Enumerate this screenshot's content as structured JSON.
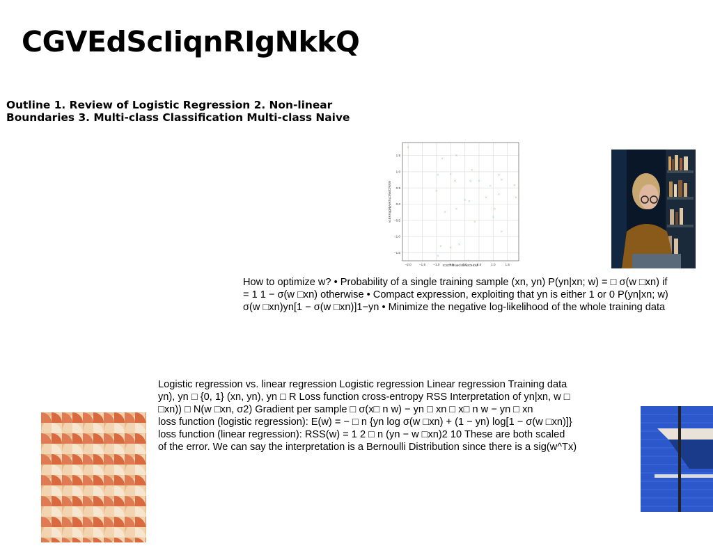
{
  "slide": {
    "title": "CGVEdScIiqnRIgNkkQ",
    "outline": "Outline 1. Review of Logistic Regression 2. Non-linear\nBoundaries 3. Multi-class Classification Multi-class Naive",
    "para1": "How to optimize w? • Probability of a single training sample (xn, yn) P(yn|xn; w) = □ σ(w □xn) if\n= 1 1 − σ(w □xn) otherwise • Compact expression, exploiting that yn is either 1 or 0 P(yn|xn; w)\nσ(w □xn)yn[1 − σ(w □xn)]1−yn • Minimize the negative log-likelihood of the whole training data",
    "para2": "Logistic regression vs. linear regression Logistic regression Linear regression Training data\nyn), yn □ {0, 1} (xn, yn), yn □ R Loss function cross-entropy RSS Interpretation of yn|xn, w □\n□xn)) □ N(w □xn, σ2) Gradient per sample □ σ(x□ n w) − yn □ xn □ x□ n w − yn □ xn\nloss function (logistic regression): E(w) = − □ n {yn log σ(w □xn) + (1 − yn) log[1 − σ(w □xn)]}\nloss function (linear regression): RSS(w) = 1 2 □ n (yn − w □xn)2 10 These are both scaled\nof the error. We can say the interpretation is a Bernoulli Distribution since there is a sig(w^Tx)"
  },
  "chart_data": {
    "type": "scatter",
    "title": "",
    "xlabel": "ICSLTXNaKfmfAxIOHbM",
    "ylabel": "vcEKKqgNywKhLDNxlCRXW",
    "xlim": [
      -2.2,
      1.9
    ],
    "ylim": [
      -1.75,
      1.9
    ],
    "xticks": [
      "−2.0",
      "−1.5",
      "−1.0",
      "−0.5",
      "0.0",
      "0.5",
      "1.0",
      "1.5"
    ],
    "yticks": [
      "−1.5",
      "−1.0",
      "−0.5",
      "0.0",
      "0.5",
      "1.0",
      "1.5"
    ],
    "grid": true,
    "marker": "x",
    "color": "#90e0a0",
    "points": [
      [
        -2.0,
        1.75
      ],
      [
        -0.8,
        1.4
      ],
      [
        -0.3,
        1.5
      ],
      [
        -0.95,
        0.9
      ],
      [
        -0.5,
        0.92
      ],
      [
        -0.35,
        0.7
      ],
      [
        -1.0,
        0.4
      ],
      [
        -0.7,
        -0.25
      ],
      [
        -0.3,
        -0.15
      ],
      [
        -0.85,
        -1.3
      ],
      [
        -0.5,
        -1.35
      ],
      [
        -0.2,
        -1.25
      ],
      [
        -0.95,
        -1.6
      ],
      [
        0.25,
        1.05
      ],
      [
        0.2,
        0.7
      ],
      [
        0.5,
        0.72
      ],
      [
        0.0,
        0.12
      ],
      [
        0.15,
        0.08
      ],
      [
        0.35,
        -0.55
      ],
      [
        0.1,
        -1.75
      ],
      [
        0.75,
        0.2
      ],
      [
        0.9,
        0.55
      ],
      [
        1.2,
        0.9
      ],
      [
        1.3,
        0.75
      ],
      [
        1.2,
        0.3
      ],
      [
        1.05,
        -0.15
      ],
      [
        1.0,
        -0.4
      ],
      [
        1.3,
        -0.85
      ],
      [
        1.75,
        0.57
      ],
      [
        1.8,
        0.2
      ]
    ]
  },
  "images": {
    "reader": "person-reading-laptop-photo",
    "tiles": "orange-tile-pattern-photo",
    "blue": "blue-wall-with-shelf-photo"
  }
}
